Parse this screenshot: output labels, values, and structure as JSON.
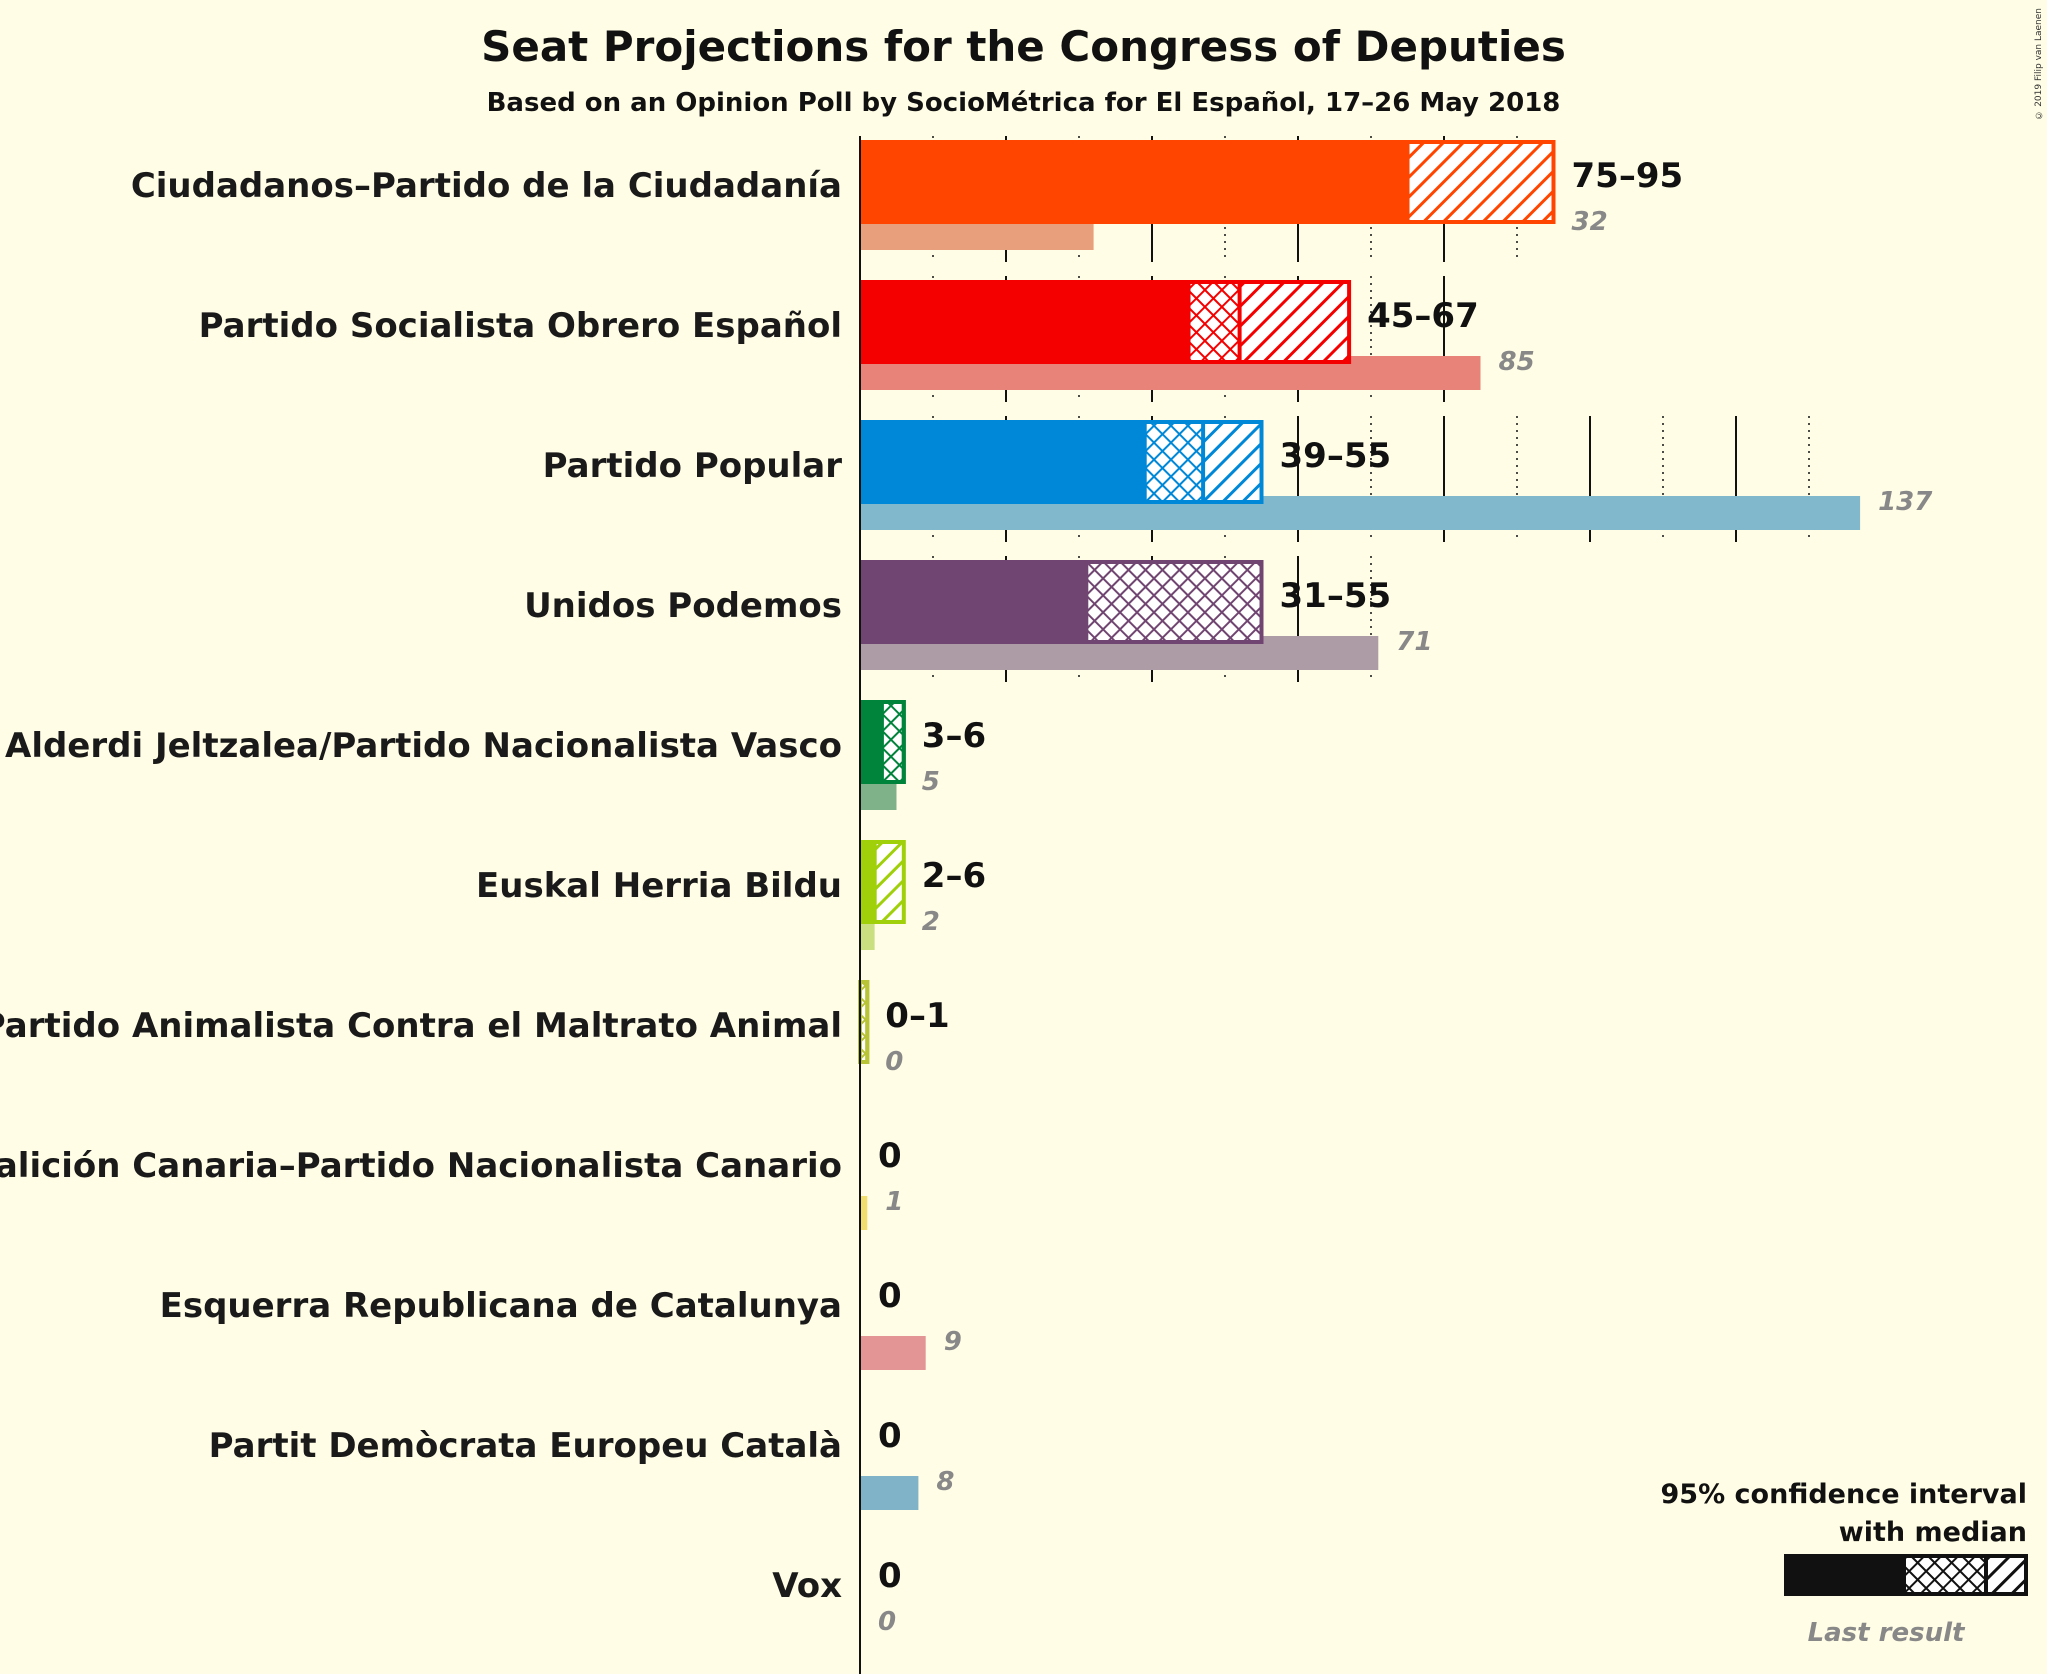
{
  "title": "Seat Projections for the Congress of Deputies",
  "subtitle": "Based on an Opinion Poll by SocioMétrica for El Español, 17–26 May 2018",
  "copyright": "© 2019 Filip van Laenen",
  "legend": {
    "ci_line1": "95% confidence interval",
    "ci_line2": "with median",
    "last_result": "Last result"
  },
  "chart_data": {
    "type": "bar",
    "orientation": "horizontal",
    "x_gridlines_every": 10,
    "xlim": [
      0,
      137
    ],
    "parties": [
      {
        "name": "Ciudadanos–Partido de la Ciudadanía",
        "low": 75,
        "median": 75,
        "high": 95,
        "range_label": "75–95",
        "last_result": 32,
        "color": "#ff4500",
        "last_color": "#e8a07c"
      },
      {
        "name": "Partido Socialista Obrero Español",
        "low": 45,
        "median": 52,
        "high": 67,
        "range_label": "45–67",
        "last_result": 85,
        "color": "#f50000",
        "last_color": "#e8837a"
      },
      {
        "name": "Partido Popular",
        "low": 39,
        "median": 47,
        "high": 55,
        "range_label": "39–55",
        "last_result": 137,
        "color": "#0088d8",
        "last_color": "#82b8cc"
      },
      {
        "name": "Unidos Podemos",
        "low": 31,
        "median": 55,
        "high": 55,
        "range_label": "31–55",
        "last_result": 71,
        "color": "#714571",
        "last_color": "#ad9ca6"
      },
      {
        "name": "Euzko Alderdi Jeltzalea/Partido Nacionalista Vasco",
        "low": 3,
        "median": 6,
        "high": 6,
        "range_label": "3–6",
        "last_result": 5,
        "color": "#00843c",
        "last_color": "#80b28a"
      },
      {
        "name": "Euskal Herria Bildu",
        "low": 2,
        "median": 2,
        "high": 6,
        "range_label": "2–6",
        "last_result": 2,
        "color": "#a0d00a",
        "last_color": "#c9df80"
      },
      {
        "name": "Partido Animalista Contra el Maltrato Animal",
        "low": 0,
        "median": 1,
        "high": 1,
        "range_label": "0–1",
        "last_result": 0,
        "color": "#b9c337",
        "last_color": "#d4d68c"
      },
      {
        "name": "Coalición Canaria–Partido Nacionalista Canario",
        "low": 0,
        "median": 0,
        "high": 0,
        "range_label": "0",
        "last_result": 1,
        "color": "#f7d600",
        "last_color": "#f0df70"
      },
      {
        "name": "Esquerra Republicana de Catalunya",
        "low": 0,
        "median": 0,
        "high": 0,
        "range_label": "0",
        "last_result": 9,
        "color": "#e3a03c",
        "last_color": "#e39494"
      },
      {
        "name": "Partit Demòcrata Europeu Català",
        "low": 0,
        "median": 0,
        "high": 0,
        "range_label": "0",
        "last_result": 8,
        "color": "#1b3d8a",
        "last_color": "#80b3c8"
      },
      {
        "name": "Vox",
        "low": 0,
        "median": 0,
        "high": 0,
        "range_label": "0",
        "last_result": 0,
        "color": "#63be21",
        "last_color": "#a0c890"
      }
    ]
  }
}
